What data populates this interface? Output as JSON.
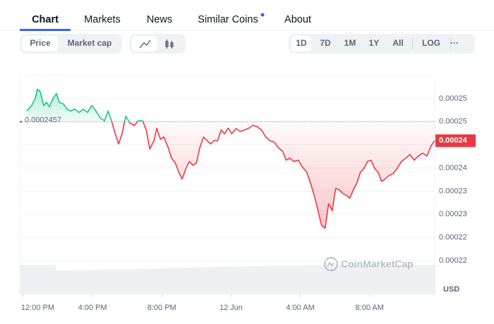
{
  "tabs": [
    "Chart",
    "Markets",
    "News",
    "Similar Coins",
    "About"
  ],
  "toggles": [
    "Price",
    "Market cap"
  ],
  "ranges": [
    "1D",
    "7D",
    "1M",
    "1Y",
    "All"
  ],
  "log": "LOG",
  "more": "···",
  "watermark": "CoinMarketCap",
  "currency": "USD",
  "chart_data": {
    "type": "line",
    "up_color": "#16c784",
    "down_color": "#ea3943",
    "baseline": 0.0002457,
    "current": {
      "value": 0.0002416,
      "label": "0.00024"
    },
    "xlim": [
      -0.2,
      23.8
    ],
    "xticks": [
      {
        "value": 0,
        "label": "12:00 PM"
      },
      {
        "value": 4,
        "label": "4:00 PM"
      },
      {
        "value": 8,
        "label": "8:00 PM"
      },
      {
        "value": 12,
        "label": "12 Jun"
      },
      {
        "value": 16,
        "label": "4:00 AM"
      },
      {
        "value": 20,
        "label": "8:00 AM"
      }
    ],
    "ylim": [
      0.0002107,
      0.0002557
    ],
    "yticks": [
      {
        "value": 0.0002507,
        "label": "0.00025"
      },
      {
        "value": 0.0002457,
        "label": "0.00025"
      },
      {
        "value": 0.0002407,
        "label": "0.00024"
      },
      {
        "value": 0.0002357,
        "label": "0.00024"
      },
      {
        "value": 0.0002307,
        "label": "0.00023"
      },
      {
        "value": 0.0002257,
        "label": "0.00023"
      },
      {
        "value": 0.0002207,
        "label": "0.00022"
      },
      {
        "value": 0.0002157,
        "label": "0.00022"
      }
    ],
    "grid": true,
    "x": [
      0.2,
      0.49,
      0.69,
      0.82,
      0.98,
      1.18,
      1.35,
      1.51,
      1.71,
      1.92,
      2.08,
      2.33,
      2.53,
      2.73,
      2.98,
      3.22,
      3.47,
      3.71,
      3.96,
      4.2,
      4.45,
      4.69,
      4.9,
      5.1,
      5.31,
      5.51,
      5.71,
      5.92,
      6.16,
      6.41,
      6.65,
      6.9,
      7.1,
      7.31,
      7.55,
      7.71,
      7.92,
      8.12,
      8.37,
      8.57,
      8.78,
      8.98,
      9.18,
      9.39,
      9.59,
      9.8,
      10.0,
      10.2,
      10.41,
      10.61,
      10.82,
      11.02,
      11.22,
      11.43,
      11.63,
      11.84,
      12.04,
      12.29,
      12.53,
      12.78,
      13.02,
      13.27,
      13.51,
      13.76,
      14.0,
      14.24,
      14.49,
      14.73,
      14.98,
      15.18,
      15.39,
      15.63,
      15.88,
      16.12,
      16.37,
      16.61,
      16.82,
      17.02,
      17.22,
      17.43,
      17.63,
      17.84,
      18.04,
      18.24,
      18.45,
      18.65,
      18.86,
      19.06,
      19.27,
      19.47,
      19.67,
      19.88,
      20.08,
      20.29,
      20.49,
      20.69,
      20.9,
      21.1,
      21.35,
      21.59,
      21.84,
      22.08,
      22.33,
      22.57,
      22.82,
      23.06,
      23.31,
      23.55,
      23.76
    ],
    "values": [
      0.000248,
      0.0002492,
      0.0002507,
      0.0002527,
      0.0002522,
      0.0002492,
      0.0002499,
      0.0002489,
      0.0002507,
      0.0002518,
      0.0002499,
      0.0002495,
      0.0002484,
      0.000248,
      0.0002484,
      0.0002477,
      0.0002484,
      0.0002477,
      0.0002492,
      0.000248,
      0.0002465,
      0.0002459,
      0.000248,
      0.0002459,
      0.0002431,
      0.0002409,
      0.0002431,
      0.0002469,
      0.0002454,
      0.0002449,
      0.0002459,
      0.0002459,
      0.0002439,
      0.0002398,
      0.0002416,
      0.0002443,
      0.0002419,
      0.0002424,
      0.0002401,
      0.0002378,
      0.0002368,
      0.0002348,
      0.0002333,
      0.0002356,
      0.0002371,
      0.0002363,
      0.0002368,
      0.0002401,
      0.0002424,
      0.0002416,
      0.0002409,
      0.0002416,
      0.0002416,
      0.0002439,
      0.0002431,
      0.0002443,
      0.0002431,
      0.0002442,
      0.0002436,
      0.0002439,
      0.0002443,
      0.0002449,
      0.0002446,
      0.0002439,
      0.0002424,
      0.0002416,
      0.0002413,
      0.0002401,
      0.0002393,
      0.0002374,
      0.0002378,
      0.0002371,
      0.0002374,
      0.0002359,
      0.0002348,
      0.0002322,
      0.0002295,
      0.0002265,
      0.0002234,
      0.0002227,
      0.000228,
      0.0002265,
      0.0002313,
      0.000231,
      0.0002302,
      0.0002298,
      0.0002292,
      0.000231,
      0.0002325,
      0.0002348,
      0.0002356,
      0.0002371,
      0.0002374,
      0.0002356,
      0.0002348,
      0.0002328,
      0.0002333,
      0.000234,
      0.0002345,
      0.0002356,
      0.0002371,
      0.0002378,
      0.0002386,
      0.0002374,
      0.0002383,
      0.0002389,
      0.0002383,
      0.0002405,
      0.0002416
    ]
  }
}
